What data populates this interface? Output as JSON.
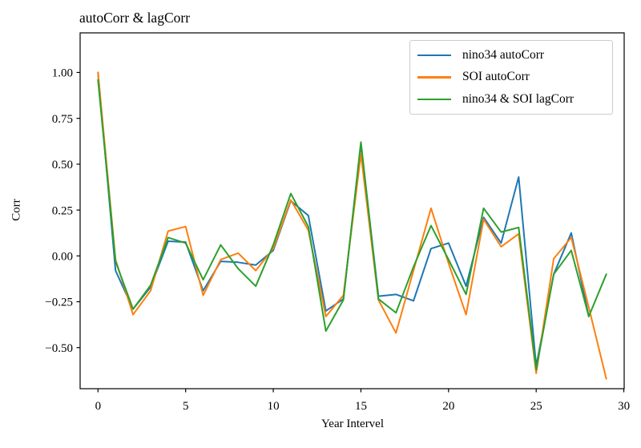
{
  "chart_data": {
    "type": "line",
    "title": "autoCorr & lagCorr",
    "xlabel": "Year Intervel",
    "ylabel": "Corr",
    "grid": false,
    "legend_position": "upper right",
    "xlim": [
      -1.02,
      30.02
    ],
    "ylim": [
      -0.724,
      1.216
    ],
    "xticks": {
      "values": [
        0,
        5,
        10,
        15,
        20,
        25,
        30
      ],
      "labels": [
        "0",
        "5",
        "10",
        "15",
        "20",
        "25",
        "30"
      ]
    },
    "yticks": {
      "values": [
        1.0,
        0.75,
        0.5,
        0.25,
        0.0,
        -0.25,
        -0.5
      ],
      "labels": [
        "1.00",
        "0.75",
        "0.50",
        "0.25",
        "0.00",
        "−0.25",
        "−0.50"
      ]
    },
    "series": [
      {
        "name": "nino34 autoCorr",
        "color": "#1f77b4",
        "x": [
          0,
          1,
          2,
          3,
          4,
          5,
          6,
          7,
          8,
          9,
          10,
          11,
          12,
          13,
          14,
          15,
          16,
          17,
          18,
          19,
          20,
          21,
          22,
          23,
          24,
          25,
          26,
          27,
          28
        ],
        "values": [
          1.0,
          -0.08,
          -0.29,
          -0.17,
          0.08,
          0.075,
          -0.19,
          -0.03,
          -0.035,
          -0.05,
          0.03,
          0.3,
          0.22,
          -0.3,
          -0.235,
          0.61,
          -0.22,
          -0.21,
          -0.245,
          0.04,
          0.07,
          -0.165,
          0.21,
          0.07,
          0.43,
          -0.6,
          -0.1,
          0.125,
          -0.33
        ]
      },
      {
        "name": "SOI autoCorr",
        "color": "#ff7f0e",
        "x": [
          0,
          1,
          2,
          3,
          4,
          5,
          6,
          7,
          8,
          9,
          10,
          11,
          12,
          13,
          14,
          15,
          16,
          17,
          18,
          19,
          20,
          21,
          22,
          23,
          24,
          25,
          26,
          27,
          28,
          29
        ],
        "values": [
          1.0,
          -0.02,
          -0.32,
          -0.19,
          0.135,
          0.16,
          -0.215,
          -0.02,
          0.015,
          -0.08,
          0.04,
          0.305,
          0.14,
          -0.33,
          -0.215,
          0.555,
          -0.24,
          -0.42,
          -0.08,
          0.26,
          -0.04,
          -0.32,
          0.2,
          0.05,
          0.12,
          -0.64,
          -0.015,
          0.1,
          -0.28,
          -0.67
        ]
      },
      {
        "name": "nino34 & SOI lagCorr",
        "color": "#2ca02c",
        "x": [
          0,
          1,
          2,
          3,
          4,
          5,
          6,
          7,
          8,
          9,
          10,
          11,
          12,
          13,
          14,
          15,
          16,
          17,
          18,
          19,
          20,
          21,
          22,
          23,
          24,
          25,
          26,
          27,
          28,
          29
        ],
        "values": [
          0.96,
          -0.03,
          -0.29,
          -0.16,
          0.1,
          0.07,
          -0.13,
          0.06,
          -0.07,
          -0.165,
          0.06,
          0.34,
          0.16,
          -0.41,
          -0.24,
          0.62,
          -0.235,
          -0.31,
          -0.06,
          0.165,
          -0.02,
          -0.21,
          0.26,
          0.13,
          0.155,
          -0.62,
          -0.1,
          0.03,
          -0.33,
          -0.1
        ]
      }
    ]
  }
}
